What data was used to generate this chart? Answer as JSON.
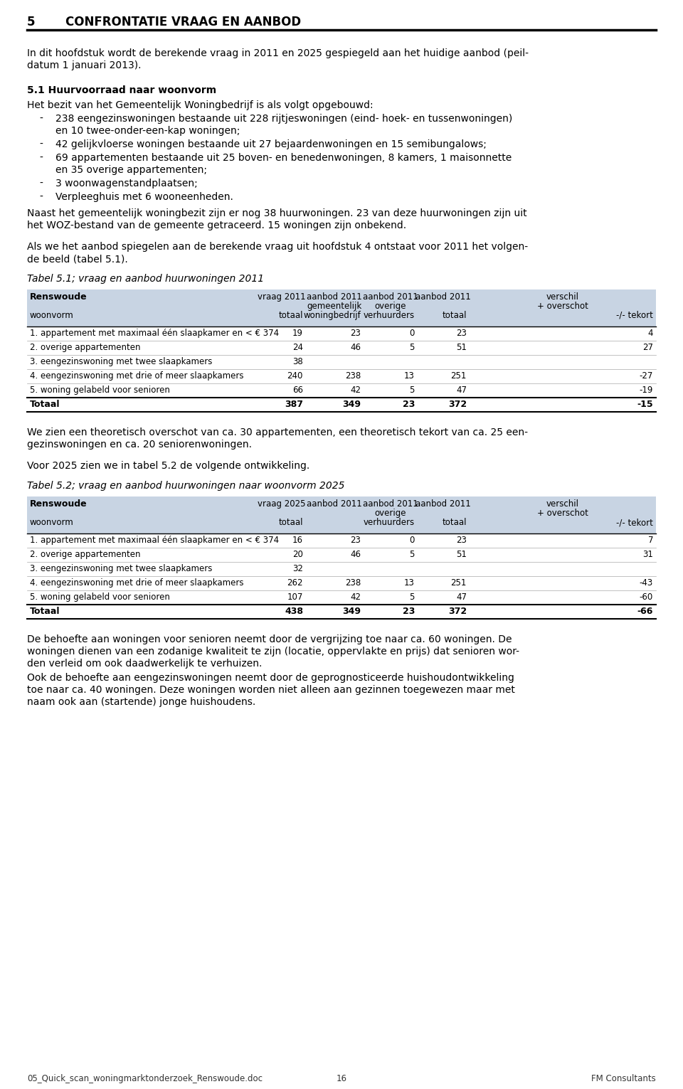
{
  "title_number": "5",
  "title_text": "CONFRONTATIE VRAAG EN AANBOD",
  "intro_text_line1": "In dit hoofdstuk wordt de berekende vraag in 2011 en 2025 gespiegeld aan het huidige aanbod (peil-",
  "intro_text_line2": "datum 1 januari 2013).",
  "section_title": "5.1 Huurvoorraad naar woonvorm",
  "section_intro": "Het bezit van het Gemeentelijk Woningbedrijf is als volgt opgebouwd:",
  "bullet_points": [
    [
      "238 eengezinswoningen bestaande uit 228 rijtjeswoningen (eind- hoek- en tussenwoningen)",
      "en 10 twee-onder-een-kap woningen;"
    ],
    [
      "42 gelijkvloerse woningen bestaande uit 27 bejaardenwoningen en 15 semibungalows;"
    ],
    [
      "69 appartementen bestaande uit 25 boven- en benedenwoningen, 8 kamers, 1 maisonnette",
      "en 35 overige appartementen;"
    ],
    [
      "3 woonwagenstandplaatsen;"
    ],
    [
      "Verpleeghuis met 6 wooneenheden."
    ]
  ],
  "para1_line1": "Naast het gemeentelijk woningbezit zijn er nog 38 huurwoningen. 23 van deze huurwoningen zijn uit",
  "para1_line2": "het WOZ-bestand van de gemeente getraceerd. 15 woningen zijn onbekend.",
  "para2_line1": "Als we het aanbod spiegelen aan de berekende vraag uit hoofdstuk 4 ontstaat voor 2011 het volgen-",
  "para2_line2": "de beeld (tabel 5.1).",
  "table1_title": "Tabel 5.1; vraag en aanbod huurwoningen 2011",
  "table1_header_col1": "Renswoude",
  "table1_rows": [
    [
      "1. appartement met maximaal één slaapkamer en < € 374",
      "19",
      "23",
      "0",
      "23",
      "4"
    ],
    [
      "2. overige appartementen",
      "24",
      "46",
      "5",
      "51",
      "27"
    ],
    [
      "3. eengezinswoning met twee slaapkamers",
      "38",
      "",
      "",
      "",
      ""
    ],
    [
      "4. eengezinswoning met drie of meer slaapkamers",
      "240",
      "",
      "",
      "",
      ""
    ],
    [
      "5. woning gelabeld voor senioren",
      "66",
      "42",
      "5",
      "47",
      "-19"
    ]
  ],
  "table1_shared": [
    "238",
    "13",
    "251",
    "-27"
  ],
  "table1_total": [
    "Totaal",
    "387",
    "349",
    "23",
    "372",
    "-15"
  ],
  "para3_line1": "We zien een theoretisch overschot van ca. 30 appartementen, een theoretisch tekort van ca. 25 een-",
  "para3_line2": "gezinswoningen en ca. 20 seniorenwoningen.",
  "para4": "Voor 2025 zien we in tabel 5.2 de volgende ontwikkeling.",
  "table2_title": "Tabel 5.2; vraag en aanbod huurwoningen naar woonvorm 2025",
  "table2_header_col1": "Renswoude",
  "table2_rows": [
    [
      "1. appartement met maximaal één slaapkamer en < € 374",
      "16",
      "23",
      "0",
      "23",
      "7"
    ],
    [
      "2. overige appartementen",
      "20",
      "46",
      "5",
      "51",
      "31"
    ],
    [
      "3. eengezinswoning met twee slaapkamers",
      "32",
      "",
      "",
      "",
      ""
    ],
    [
      "4. eengezinswoning met drie of meer slaapkamers",
      "262",
      "",
      "",
      "",
      ""
    ],
    [
      "5. woning gelabeld voor senioren",
      "107",
      "42",
      "5",
      "47",
      "-60"
    ]
  ],
  "table2_shared": [
    "238",
    "13",
    "251",
    "-43"
  ],
  "table2_total": [
    "Totaal",
    "438",
    "349",
    "23",
    "372",
    "-66"
  ],
  "para5_lines": [
    "De behoefte aan woningen voor senioren neemt door de vergrijzing toe naar ca. 60 woningen. De",
    "woningen dienen van een zodanige kwaliteit te zijn (locatie, oppervlakte en prijs) dat senioren wor-",
    "den verleid om ook daadwerkelijk te verhuizen.",
    "Ook de behoefte aan eengezinswoningen neemt door de geprognosticeerde huishoudontwikkeling",
    "toe naar ca. 40 woningen. Deze woningen worden niet alleen aan gezinnen toegewezen maar met",
    "naam ook aan (startende) jonge huishoudens."
  ],
  "footer_left": "05_Quick_scan_woningmarktonderzoek_Renswoude.doc",
  "footer_center": "16",
  "footer_right": "FM Consultants",
  "bg_color": "#ffffff",
  "text_color": "#000000",
  "table_header_bg": "#c8d4e3",
  "line_color": "#000000"
}
